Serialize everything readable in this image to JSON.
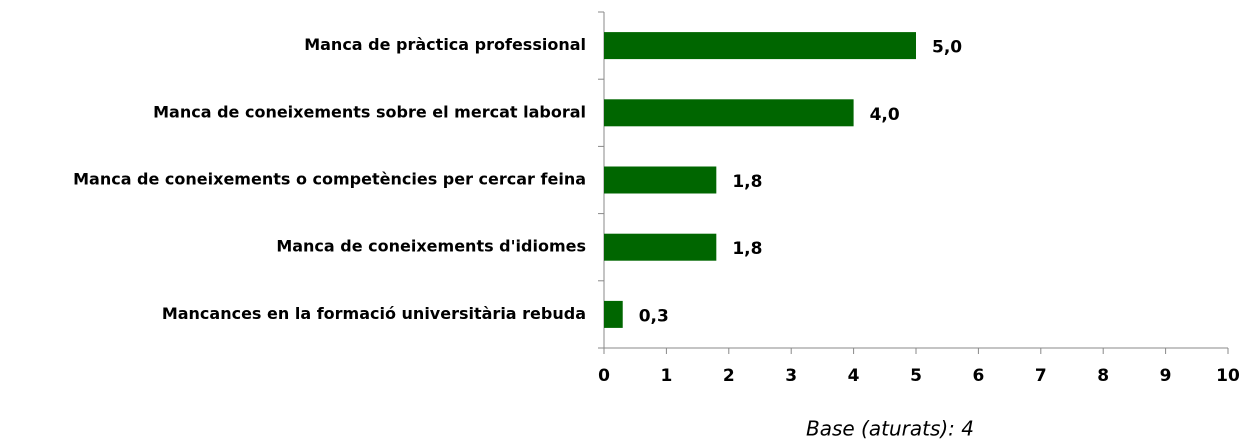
{
  "chart_data": {
    "type": "bar",
    "orientation": "horizontal",
    "categories": [
      "Manca de pràctica professional",
      "Manca de coneixements sobre el mercat laboral",
      "Manca de coneixements o competències per cercar feina",
      "Manca de coneixements d'idiomes",
      "Mancances en la formació universitària rebuda"
    ],
    "values": [
      5.0,
      4.0,
      1.8,
      1.8,
      0.3
    ],
    "value_labels": [
      "5,0",
      "4,0",
      "1,8",
      "1,8",
      "0,3"
    ],
    "color": "#006600",
    "xlim": [
      0,
      10
    ],
    "xticks": [
      0,
      1,
      2,
      3,
      4,
      5,
      6,
      7,
      8,
      9,
      10
    ],
    "annotation": "Base (aturats): 4"
  }
}
